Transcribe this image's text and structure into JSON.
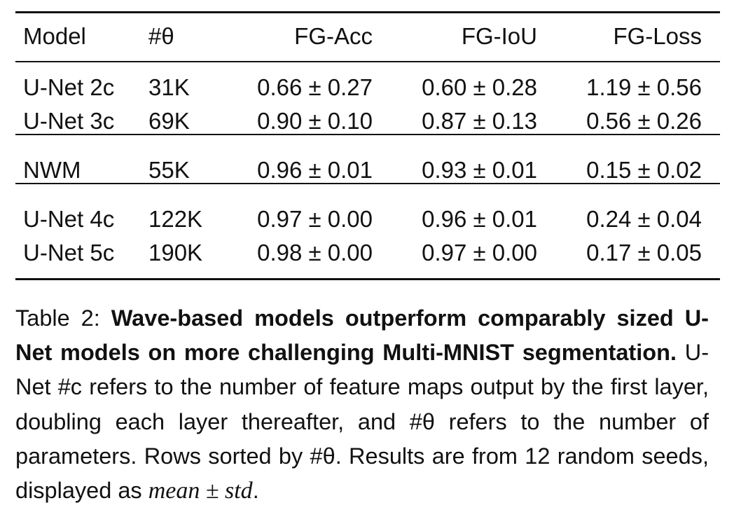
{
  "table": {
    "header": [
      "Model",
      "#θ",
      "FG-Acc",
      "FG-IoU",
      "FG-Loss"
    ],
    "groups": [
      [
        [
          "U-Net 2c",
          "31K",
          "0.66 ± 0.27",
          "0.60 ± 0.28",
          "1.19 ± 0.56"
        ],
        [
          "U-Net 3c",
          "69K",
          "0.90 ± 0.10",
          "0.87 ± 0.13",
          "0.56 ± 0.26"
        ]
      ],
      [
        [
          "NWM",
          "55K",
          "0.96 ± 0.01",
          "0.93 ± 0.01",
          "0.15 ± 0.02"
        ]
      ],
      [
        [
          "U-Net 4c",
          "122K",
          "0.97 ± 0.00",
          "0.96 ± 0.01",
          "0.24 ± 0.04"
        ],
        [
          "U-Net 5c",
          "190K",
          "0.98 ± 0.00",
          "0.97 ± 0.00",
          "0.17 ± 0.05"
        ]
      ]
    ]
  },
  "caption": {
    "label": "Table 2:",
    "bold": "Wave-based models outperform comparably sized U-Net models on more challenging Multi-MNIST segmentation.",
    "body": "U-Net #c refers to the number of feature maps output by the first layer, doubling each layer thereafter, and #θ refers to the number of parameters. Rows sorted by #θ. Results are from 12 random seeds, displayed as",
    "math": "mean ± std",
    "end": "."
  }
}
